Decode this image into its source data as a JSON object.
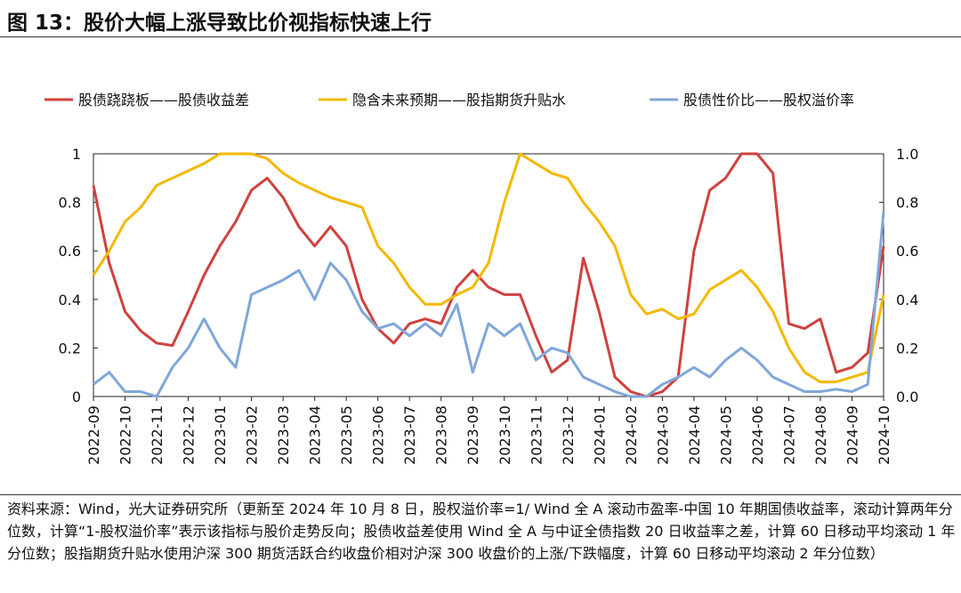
{
  "chart_data": {
    "type": "line",
    "title": "图 13：股价大幅上涨导致比价视指标快速上行",
    "note": "资料来源：Wind，光大证券研究所（更新至 2024 年 10 月 8 日，股权溢价率=1/ Wind 全 A 滚动市盈率-中国 10 年期国债收益率，滚动计算两年分位数，计算“1-股权溢价率”表示该指标与股价走势反向；股债收益差使用 Wind 全 A 与中证全债指数 20 日收益率之差，计算 60 日移动平均滚动 1 年分位数；股指期货升贴水使用沪深 300 期货活跃合约收盘价相对沪深 300 收盘价的上涨/下跌幅度，计算 60 日移动平均滚动 2 年分位数）",
    "categories": [
      "2022-09",
      null,
      "2022-10",
      null,
      "2022-11",
      null,
      "2022-12",
      null,
      "2023-01",
      null,
      "2023-02",
      null,
      "2023-03",
      null,
      "2023-04",
      null,
      "2023-05",
      null,
      "2023-06",
      null,
      "2023-07",
      null,
      "2023-08",
      null,
      "2023-09",
      null,
      "2023-10",
      null,
      "2023-11",
      null,
      "2023-12",
      null,
      "2024-01",
      null,
      "2024-02",
      null,
      "2024-03",
      null,
      "2024-04",
      null,
      "2024-05",
      null,
      "2024-06",
      null,
      "2024-07",
      null,
      "2024-08",
      null,
      "2024-09",
      null,
      "2024-10"
    ],
    "series": [
      {
        "name": "股债跷跷板——股债收益差",
        "color": "#d0413f",
        "values": [
          0.87,
          0.55,
          0.35,
          0.27,
          0.22,
          0.21,
          0.35,
          0.5,
          0.62,
          0.72,
          0.85,
          0.9,
          0.82,
          0.7,
          0.62,
          0.7,
          0.62,
          0.4,
          0.28,
          0.22,
          0.3,
          0.32,
          0.3,
          0.45,
          0.52,
          0.45,
          0.42,
          0.42,
          0.25,
          0.1,
          0.15,
          0.57,
          0.35,
          0.08,
          0.02,
          0,
          0.02,
          0.08,
          0.6,
          0.85,
          0.9,
          1,
          1,
          0.92,
          0.3,
          0.28,
          0.32,
          0.1,
          0.12,
          0.18,
          0.62
        ]
      },
      {
        "name": "隐含未来预期——股指期货升贴水",
        "color": "#f5b800",
        "values": [
          0.5,
          0.6,
          0.72,
          0.78,
          0.87,
          0.9,
          0.93,
          0.96,
          1,
          1,
          1,
          0.98,
          0.92,
          0.88,
          0.85,
          0.82,
          0.8,
          0.78,
          0.62,
          0.55,
          0.45,
          0.38,
          0.38,
          0.42,
          0.45,
          0.55,
          0.8,
          1,
          0.96,
          0.92,
          0.9,
          0.8,
          0.72,
          0.62,
          0.42,
          0.34,
          0.36,
          0.32,
          0.34,
          0.44,
          0.48,
          0.52,
          0.45,
          0.35,
          0.2,
          0.1,
          0.06,
          0.06,
          0.08,
          0.1,
          0.42
        ]
      },
      {
        "name": "股债性价比——股权溢价率",
        "color": "#7fa7d9",
        "values": [
          0.05,
          0.1,
          0.02,
          0.02,
          0,
          0.12,
          0.2,
          0.32,
          0.2,
          0.12,
          0.42,
          0.45,
          0.48,
          0.52,
          0.4,
          0.55,
          0.48,
          0.35,
          0.28,
          0.3,
          0.25,
          0.3,
          0.25,
          0.38,
          0.1,
          0.3,
          0.25,
          0.3,
          0.15,
          0.2,
          0.18,
          0.08,
          0.05,
          0.02,
          0,
          0,
          0.05,
          0.08,
          0.12,
          0.08,
          0.15,
          0.2,
          0.15,
          0.08,
          0.05,
          0.02,
          0.02,
          0.03,
          0.02,
          0.05,
          0.76
        ]
      }
    ],
    "ylim": [
      0,
      1
    ],
    "yticks": [
      0,
      0.2,
      0.4,
      0.6,
      0.8,
      1
    ],
    "y2lim": [
      0,
      1
    ],
    "y2ticks": [
      {
        "value": 0,
        "label": "0.0"
      },
      {
        "value": 0.2,
        "label": "0.2"
      },
      {
        "value": 0.4,
        "label": "0.4"
      },
      {
        "value": 0.6,
        "label": "0.6"
      },
      {
        "value": 0.8,
        "label": "0.8"
      },
      {
        "value": 1,
        "label": "1.0"
      }
    ],
    "grid": false,
    "legend": "top"
  }
}
